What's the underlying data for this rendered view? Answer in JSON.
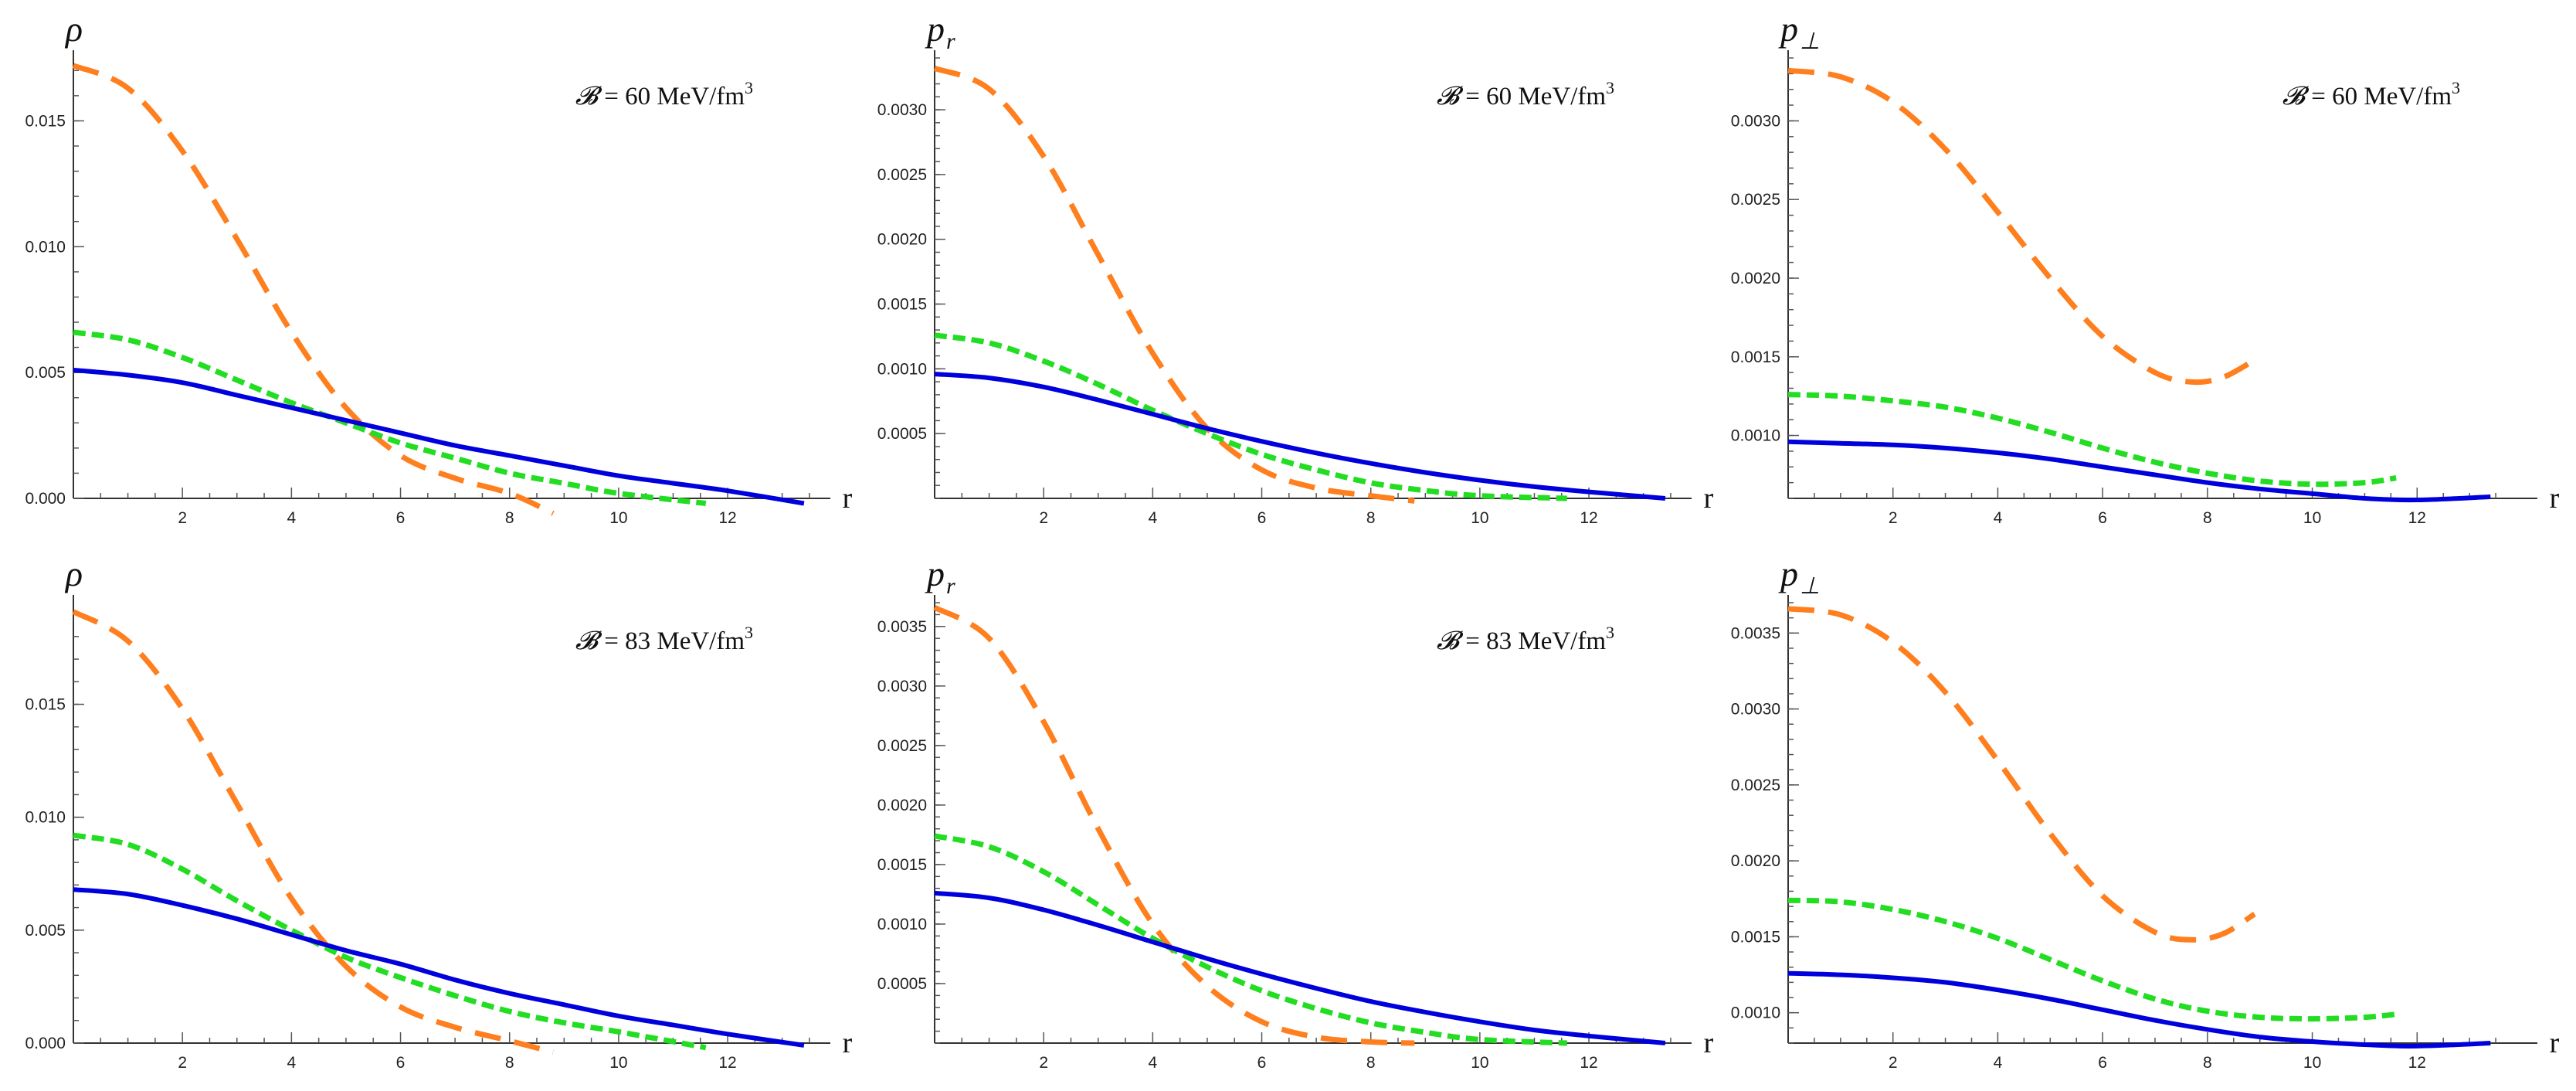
{
  "figure": {
    "x_label": "r",
    "colors": {
      "orange": "#ff7f1e",
      "green": "#22dd22",
      "blue": "#0000dd"
    }
  },
  "chart_data": [
    {
      "type": "line",
      "ylabel": "ρ",
      "annotation": {
        "symbol": "𝓑",
        "text": " = 60 MeV",
        "unit": "/fm",
        "sup": "3"
      },
      "xlim": [
        0,
        13.6
      ],
      "ylim": [
        0,
        0.0175
      ],
      "xticks": [
        2,
        4,
        6,
        8,
        10,
        12
      ],
      "yticks": [
        0.0,
        0.005,
        0.01,
        0.015
      ],
      "ytick_labels": [
        "0.000",
        "0.005",
        "0.010",
        "0.015"
      ],
      "series": [
        {
          "name": "orange-dashed",
          "color": "#ff7f1e",
          "style": "dashed",
          "x": [
            0,
            1,
            2,
            3,
            4,
            5,
            6,
            7,
            8,
            8.8
          ],
          "y": [
            0.0172,
            0.0163,
            0.0138,
            0.0103,
            0.0066,
            0.0036,
            0.0017,
            0.0008,
            0.0002,
            -0.0006
          ]
        },
        {
          "name": "green-dashed",
          "color": "#22dd22",
          "style": "short-dashed",
          "x": [
            0,
            1,
            2,
            3,
            4,
            5,
            6,
            7,
            8,
            9,
            10,
            11.6
          ],
          "y": [
            0.0066,
            0.0063,
            0.0056,
            0.0047,
            0.0038,
            0.003,
            0.0022,
            0.0016,
            0.001,
            0.0006,
            0.0002,
            -0.0002
          ]
        },
        {
          "name": "blue-solid",
          "color": "#0000dd",
          "style": "solid",
          "x": [
            0,
            1,
            2,
            3,
            4,
            5,
            6,
            7,
            8,
            9,
            10,
            11,
            12,
            13.4
          ],
          "y": [
            0.0051,
            0.0049,
            0.0046,
            0.0041,
            0.0036,
            0.0031,
            0.0026,
            0.0021,
            0.0017,
            0.0013,
            0.0009,
            0.0006,
            0.0003,
            -0.0002
          ]
        }
      ]
    },
    {
      "type": "line",
      "ylabel": "p",
      "ylabel_sub": "r",
      "annotation": {
        "symbol": "𝓑",
        "text": " = 60 MeV",
        "unit": "/fm",
        "sup": "3"
      },
      "xlim": [
        0,
        13.6
      ],
      "ylim": [
        0,
        0.0034
      ],
      "xticks": [
        2,
        4,
        6,
        8,
        10,
        12
      ],
      "yticks": [
        0.0005,
        0.001,
        0.0015,
        0.002,
        0.0025,
        0.003
      ],
      "ytick_labels": [
        "0.0005",
        "0.0010",
        "0.0015",
        "0.0020",
        "0.0025",
        "0.0030"
      ],
      "series": [
        {
          "name": "orange-dashed",
          "color": "#ff7f1e",
          "style": "dashed",
          "x": [
            0,
            1,
            2,
            3,
            4,
            5,
            6,
            7,
            8,
            8.8
          ],
          "y": [
            0.00332,
            0.00316,
            0.00264,
            0.00188,
            0.00112,
            0.00054,
            0.00022,
            8e-05,
            2e-05,
            -2e-05
          ]
        },
        {
          "name": "green-dashed",
          "color": "#22dd22",
          "style": "short-dashed",
          "x": [
            0,
            1,
            2,
            3,
            4,
            5,
            6,
            7,
            8,
            9,
            10,
            11.6
          ],
          "y": [
            0.00126,
            0.0012,
            0.00106,
            0.00088,
            0.00068,
            0.0005,
            0.00034,
            0.00022,
            0.00012,
            6e-05,
            2e-05,
            0
          ]
        },
        {
          "name": "blue-solid",
          "color": "#0000dd",
          "style": "solid",
          "x": [
            0,
            1,
            2,
            3,
            4,
            5,
            6,
            7,
            8,
            9,
            10,
            11,
            12,
            13.4
          ],
          "y": [
            0.00096,
            0.00093,
            0.00086,
            0.00076,
            0.00065,
            0.00054,
            0.00044,
            0.00035,
            0.00027,
            0.0002,
            0.00014,
            9e-05,
            5e-05,
            0
          ]
        }
      ]
    },
    {
      "type": "line",
      "ylabel": "p",
      "ylabel_sub": "⊥",
      "annotation": {
        "symbol": "𝓑",
        "text": " = 60 MeV",
        "unit": "/fm",
        "sup": "3"
      },
      "xlim": [
        0,
        14
      ],
      "ylim": [
        0.0006,
        0.0034
      ],
      "xticks": [
        2,
        4,
        6,
        8,
        10,
        12
      ],
      "yticks": [
        0.001,
        0.0015,
        0.002,
        0.0025,
        0.003
      ],
      "ytick_labels": [
        "0.0010",
        "0.0015",
        "0.0020",
        "0.0025",
        "0.0030"
      ],
      "series": [
        {
          "name": "orange-dashed",
          "color": "#ff7f1e",
          "style": "dashed",
          "x": [
            0,
            1,
            2,
            3,
            4,
            5,
            6,
            7,
            7.7,
            8.3,
            8.9
          ],
          "y": [
            0.00332,
            0.00328,
            0.00312,
            0.00282,
            0.00242,
            0.002,
            0.00163,
            0.0014,
            0.00134,
            0.00137,
            0.00148
          ]
        },
        {
          "name": "green-dashed",
          "color": "#22dd22",
          "style": "short-dashed",
          "x": [
            0,
            1,
            2,
            3,
            4,
            5,
            6,
            7,
            8,
            9,
            10,
            11,
            11.6
          ],
          "y": [
            0.00126,
            0.00125,
            0.00122,
            0.00118,
            0.00111,
            0.00102,
            0.00092,
            0.00083,
            0.00076,
            0.00071,
            0.00069,
            0.0007,
            0.00073
          ]
        },
        {
          "name": "blue-solid",
          "color": "#0000dd",
          "style": "solid",
          "x": [
            0,
            1,
            2,
            3,
            4,
            5,
            6,
            7,
            8,
            9,
            10,
            11,
            12,
            13.4
          ],
          "y": [
            0.00096,
            0.00095,
            0.00094,
            0.00092,
            0.00089,
            0.00085,
            0.0008,
            0.00075,
            0.0007,
            0.00066,
            0.00063,
            0.0006,
            0.00059,
            0.00061
          ]
        }
      ]
    },
    {
      "type": "line",
      "ylabel": "ρ",
      "annotation": {
        "symbol": "𝓑",
        "text": " = 83 MeV",
        "unit": "/fm",
        "sup": "3"
      },
      "xlim": [
        0,
        13.6
      ],
      "ylim": [
        0,
        0.0195
      ],
      "xticks": [
        2,
        4,
        6,
        8,
        10,
        12
      ],
      "yticks": [
        0.0,
        0.005,
        0.01,
        0.015
      ],
      "ytick_labels": [
        "0.000",
        "0.005",
        "0.010",
        "0.015"
      ],
      "series": [
        {
          "name": "orange-dashed",
          "color": "#ff7f1e",
          "style": "dashed",
          "x": [
            0,
            1,
            2,
            3,
            4,
            5,
            6,
            7,
            8,
            8.8
          ],
          "y": [
            0.0191,
            0.0178,
            0.0148,
            0.0106,
            0.0064,
            0.0034,
            0.0016,
            0.0007,
            0.0001,
            -0.0004
          ]
        },
        {
          "name": "green-dashed",
          "color": "#22dd22",
          "style": "short-dashed",
          "x": [
            0,
            1,
            2,
            3,
            4,
            5,
            6,
            7,
            8,
            9,
            10,
            11.6
          ],
          "y": [
            0.0092,
            0.0088,
            0.0077,
            0.0063,
            0.005,
            0.0038,
            0.0029,
            0.0021,
            0.0014,
            0.0009,
            0.0005,
            -0.0002
          ]
        },
        {
          "name": "blue-solid",
          "color": "#0000dd",
          "style": "solid",
          "x": [
            0,
            1,
            2,
            3,
            4,
            5,
            6,
            7,
            8,
            9,
            10,
            11,
            12,
            13.4
          ],
          "y": [
            0.0068,
            0.0066,
            0.0061,
            0.0055,
            0.0048,
            0.0041,
            0.0035,
            0.0028,
            0.0022,
            0.0017,
            0.0012,
            0.0008,
            0.0004,
            -0.0001
          ]
        }
      ]
    },
    {
      "type": "line",
      "ylabel": "p",
      "ylabel_sub": "r",
      "annotation": {
        "symbol": "𝓑",
        "text": " = 83 MeV",
        "unit": "/fm",
        "sup": "3"
      },
      "xlim": [
        0,
        13.6
      ],
      "ylim": [
        0,
        0.0037
      ],
      "xticks": [
        2,
        4,
        6,
        8,
        10,
        12
      ],
      "yticks": [
        0.0005,
        0.001,
        0.0015,
        0.002,
        0.0025,
        0.003,
        0.0035
      ],
      "ytick_labels": [
        "0.0005",
        "0.0010",
        "0.0015",
        "0.0020",
        "0.0025",
        "0.0030",
        "0.0035"
      ],
      "series": [
        {
          "name": "orange-dashed",
          "color": "#ff7f1e",
          "style": "dashed",
          "x": [
            0,
            1,
            2,
            3,
            4,
            5,
            6,
            7,
            8,
            8.8
          ],
          "y": [
            0.00366,
            0.0034,
            0.0027,
            0.0018,
            0.001,
            0.00048,
            0.00018,
            5e-05,
            1e-05,
            0
          ]
        },
        {
          "name": "green-dashed",
          "color": "#22dd22",
          "style": "short-dashed",
          "x": [
            0,
            1,
            2,
            3,
            4,
            5,
            6,
            7,
            8,
            9,
            10,
            11.6
          ],
          "y": [
            0.00174,
            0.00165,
            0.00144,
            0.00116,
            0.00088,
            0.00064,
            0.00044,
            0.00029,
            0.00017,
            9e-05,
            3e-05,
            0
          ]
        },
        {
          "name": "blue-solid",
          "color": "#0000dd",
          "style": "solid",
          "x": [
            0,
            1,
            2,
            3,
            4,
            5,
            6,
            7,
            8,
            9,
            10,
            11,
            12,
            13.4
          ],
          "y": [
            0.00126,
            0.00122,
            0.00112,
            0.00099,
            0.00085,
            0.00071,
            0.00058,
            0.00046,
            0.00035,
            0.00026,
            0.00018,
            0.00011,
            6e-05,
            0
          ]
        }
      ]
    },
    {
      "type": "line",
      "ylabel": "p",
      "ylabel_sub": "⊥",
      "annotation": null,
      "xlim": [
        0,
        14
      ],
      "ylim": [
        0.0008,
        0.0037
      ],
      "xticks": [
        2,
        4,
        6,
        8,
        10,
        12
      ],
      "yticks": [
        0.001,
        0.0015,
        0.002,
        0.0025,
        0.003,
        0.0035
      ],
      "ytick_labels": [
        "0.0010",
        "0.0015",
        "0.0020",
        "0.0025",
        "0.0030",
        "0.0035"
      ],
      "series": [
        {
          "name": "orange-dashed",
          "color": "#ff7f1e",
          "style": "dashed",
          "x": [
            0,
            1,
            2,
            3,
            4,
            5,
            6,
            7,
            7.7,
            8.3,
            8.9
          ],
          "y": [
            0.00366,
            0.00362,
            0.00344,
            0.00311,
            0.00266,
            0.00218,
            0.00177,
            0.00153,
            0.00148,
            0.00152,
            0.00165
          ]
        },
        {
          "name": "green-dashed",
          "color": "#22dd22",
          "style": "short-dashed",
          "x": [
            0,
            1,
            2,
            3,
            4,
            5,
            6,
            7,
            8,
            9,
            10,
            11,
            11.6
          ],
          "y": [
            0.00174,
            0.00173,
            0.00168,
            0.0016,
            0.00149,
            0.00135,
            0.00121,
            0.00109,
            0.00101,
            0.00097,
            0.00096,
            0.00097,
            0.00099
          ]
        },
        {
          "name": "blue-solid",
          "color": "#0000dd",
          "style": "solid",
          "x": [
            0,
            1,
            2,
            3,
            4,
            5,
            6,
            7,
            8,
            9,
            10,
            11,
            12,
            13.4
          ],
          "y": [
            0.00126,
            0.00125,
            0.00123,
            0.0012,
            0.00115,
            0.00109,
            0.00102,
            0.00095,
            0.00089,
            0.00084,
            0.00081,
            0.00079,
            0.00078,
            0.0008
          ]
        }
      ]
    }
  ]
}
